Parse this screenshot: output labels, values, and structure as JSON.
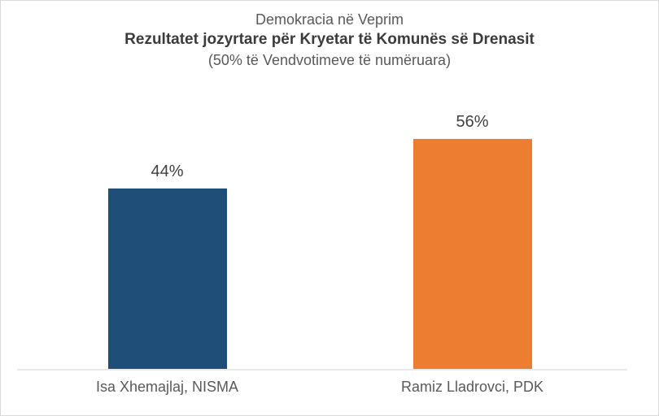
{
  "chart_data": {
    "type": "bar",
    "title_lines": [
      "Demokracia në Veprim",
      "Rezultatet jozyrtare për Kryetar të Komunës së Drenasit",
      "(50% të Vendvotimeve të numëruara)"
    ],
    "categories": [
      "Isa Xhemajlaj, NISMA",
      "Ramiz Lladrovci, PDK"
    ],
    "values": [
      44,
      56
    ],
    "value_labels": [
      "44%",
      "56%"
    ],
    "series_colors": [
      "#1F4E79",
      "#ED7D31"
    ],
    "xlabel": "",
    "ylabel": "",
    "ylim": [
      0,
      60
    ],
    "grid": false,
    "legend": false,
    "axis_line_color": "#E8E8E8"
  },
  "colors": {
    "title_gray": "#595959",
    "title_bold": "#3B3B3B",
    "data_label": "#404040",
    "bar_navy": "#1F4E79",
    "bar_orange": "#ED7D31",
    "frame_border": "#D9D9D9"
  }
}
